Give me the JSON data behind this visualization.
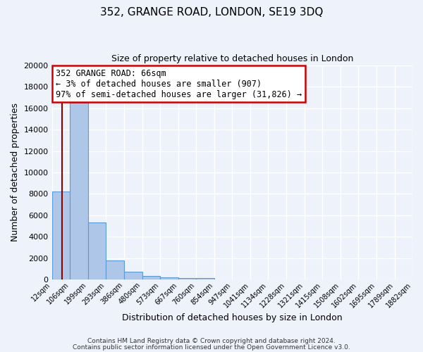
{
  "title": "352, GRANGE ROAD, LONDON, SE19 3DQ",
  "subtitle": "Size of property relative to detached houses in London",
  "xlabel": "Distribution of detached houses by size in London",
  "ylabel": "Number of detached properties",
  "bar_values": [
    8200,
    16500,
    5300,
    1750,
    700,
    300,
    200,
    150,
    150
  ],
  "bar_left_edges": [
    12,
    106,
    199,
    293,
    386,
    480,
    573,
    667,
    760
  ],
  "bar_widths": [
    94,
    93,
    94,
    93,
    94,
    93,
    94,
    93,
    94
  ],
  "all_bin_edges": [
    12,
    106,
    199,
    293,
    386,
    480,
    573,
    667,
    760,
    854,
    947,
    1041,
    1134,
    1228,
    1321,
    1415,
    1508,
    1602,
    1695,
    1789,
    1882
  ],
  "tick_labels": [
    "12sqm",
    "106sqm",
    "199sqm",
    "293sqm",
    "386sqm",
    "480sqm",
    "573sqm",
    "667sqm",
    "760sqm",
    "854sqm",
    "947sqm",
    "1041sqm",
    "1134sqm",
    "1228sqm",
    "1321sqm",
    "1415sqm",
    "1508sqm",
    "1602sqm",
    "1695sqm",
    "1789sqm",
    "1882sqm"
  ],
  "ylim": [
    0,
    20000
  ],
  "yticks": [
    0,
    2000,
    4000,
    6000,
    8000,
    10000,
    12000,
    14000,
    16000,
    18000,
    20000
  ],
  "bar_color": "#aec6e8",
  "bar_edge_color": "#5b9bd5",
  "property_line_x": 66,
  "property_line_color": "#8b0000",
  "annotation_title": "352 GRANGE ROAD: 66sqm",
  "annotation_line1": "← 3% of detached houses are smaller (907)",
  "annotation_line2": "97% of semi-detached houses are larger (31,826) →",
  "annotation_box_facecolor": "#ffffff",
  "annotation_box_edgecolor": "#cc0000",
  "background_color": "#eef2fb",
  "grid_color": "#ffffff",
  "footer_line1": "Contains HM Land Registry data © Crown copyright and database right 2024.",
  "footer_line2": "Contains public sector information licensed under the Open Government Licence v3.0."
}
